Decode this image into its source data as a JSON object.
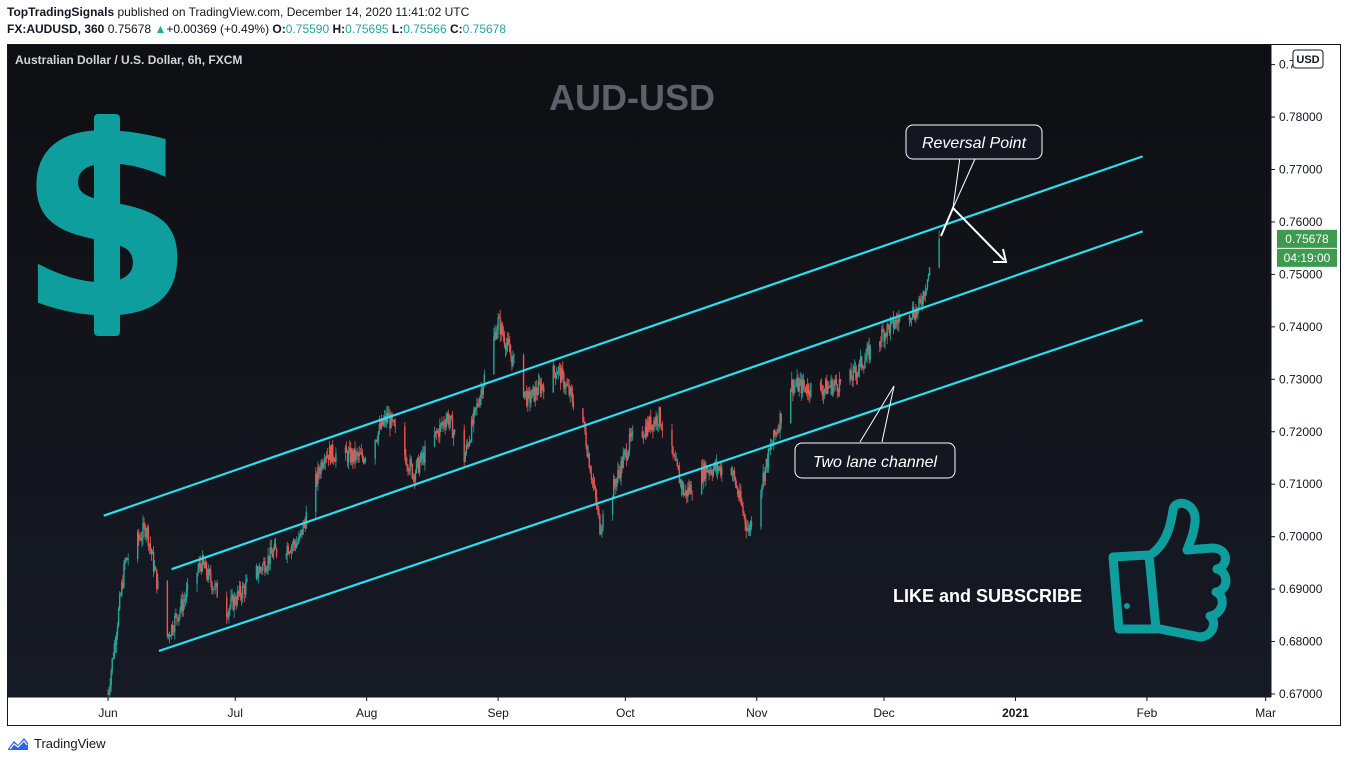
{
  "header": {
    "author": "TopTradingSignals",
    "published": "published on TradingView.com, December 14, 2020 11:41:02 UTC",
    "symbol": "FX:AUDUSD, 360",
    "last": "0.75678",
    "change_arrow": "▲",
    "change": "+0.00369 (+0.49%)",
    "o_label": "O:",
    "o_value": "0.75590",
    "h_label": "H:",
    "h_value": "0.75695",
    "l_label": "L:",
    "l_value": "0.75566",
    "c_label": "C:",
    "c_value": "0.75678"
  },
  "footer": {
    "brand": "TradingView",
    "logo_icon": "tradingview-logo-icon"
  },
  "chart_data": {
    "type": "candlestick",
    "title": "AUD-USD",
    "instrument_label": "Australian Dollar / U.S. Dollar, 6h, FXCM",
    "currency_badge": "USD",
    "yaxis_ticks": [
      "0.67000",
      "0.68000",
      "0.69000",
      "0.70000",
      "0.71000",
      "0.72000",
      "0.73000",
      "0.74000",
      "0.75000",
      "0.76000",
      "0.77000",
      "0.78000",
      "0.79000"
    ],
    "ylim": [
      0.67,
      0.795
    ],
    "xaxis_ticks": [
      "Jun",
      "Jul",
      "Aug",
      "Sep",
      "Oct",
      "Nov",
      "Dec",
      "2021",
      "Feb",
      "Mar"
    ],
    "last_price_label": "0.75678",
    "countdown_label": "04:19:00",
    "price_path": [
      [
        "2020-06-01",
        0.67
      ],
      [
        "2020-06-05",
        0.695
      ],
      [
        "2020-06-10",
        0.702
      ],
      [
        "2020-06-15",
        0.681
      ],
      [
        "2020-06-23",
        0.695
      ],
      [
        "2020-06-29",
        0.686
      ],
      [
        "2020-07-10",
        0.697
      ],
      [
        "2020-07-16",
        0.699
      ],
      [
        "2020-07-22",
        0.716
      ],
      [
        "2020-07-31",
        0.715
      ],
      [
        "2020-08-06",
        0.723
      ],
      [
        "2020-08-12",
        0.712
      ],
      [
        "2020-08-20",
        0.723
      ],
      [
        "2020-08-24",
        0.715
      ],
      [
        "2020-09-01",
        0.741
      ],
      [
        "2020-09-08",
        0.726
      ],
      [
        "2020-09-15",
        0.732
      ],
      [
        "2020-09-21",
        0.722
      ],
      [
        "2020-09-25",
        0.702
      ],
      [
        "2020-10-02",
        0.718
      ],
      [
        "2020-10-09",
        0.723
      ],
      [
        "2020-10-15",
        0.708
      ],
      [
        "2020-10-20",
        0.713
      ],
      [
        "2020-10-26",
        0.713
      ],
      [
        "2020-10-30",
        0.701
      ],
      [
        "2020-11-04",
        0.716
      ],
      [
        "2020-11-09",
        0.729
      ],
      [
        "2020-11-16",
        0.728
      ],
      [
        "2020-11-23",
        0.73
      ],
      [
        "2020-12-01",
        0.739
      ],
      [
        "2020-12-07",
        0.743
      ],
      [
        "2020-12-09",
        0.743
      ],
      [
        "2020-12-14",
        0.7568
      ]
    ],
    "channel_lines": [
      {
        "name": "upper",
        "from": [
          "2020-05-31",
          0.704
        ],
        "to": [
          "2021-01-31",
          0.7725
        ]
      },
      {
        "name": "middle",
        "from": [
          "2020-06-16",
          0.6938
        ],
        "to": [
          "2021-01-31",
          0.7582
        ]
      },
      {
        "name": "lower",
        "from": [
          "2020-06-13",
          0.6782
        ],
        "to": [
          "2021-01-31",
          0.7413
        ]
      }
    ],
    "annotations": [
      {
        "text": "Reversal Point"
      },
      {
        "text": "Two lane channel"
      },
      {
        "text": "LIKE and SUBSCRIBE"
      }
    ],
    "decorations": [
      "dollar-sign-icon",
      "thumbs-up-icon"
    ],
    "colors": {
      "background": "#131722",
      "up": "#26a69a",
      "down": "#ef5350",
      "channel": "#28e0f0",
      "accent": "#0e9e9e",
      "badge": "#3d9a4f"
    }
  }
}
